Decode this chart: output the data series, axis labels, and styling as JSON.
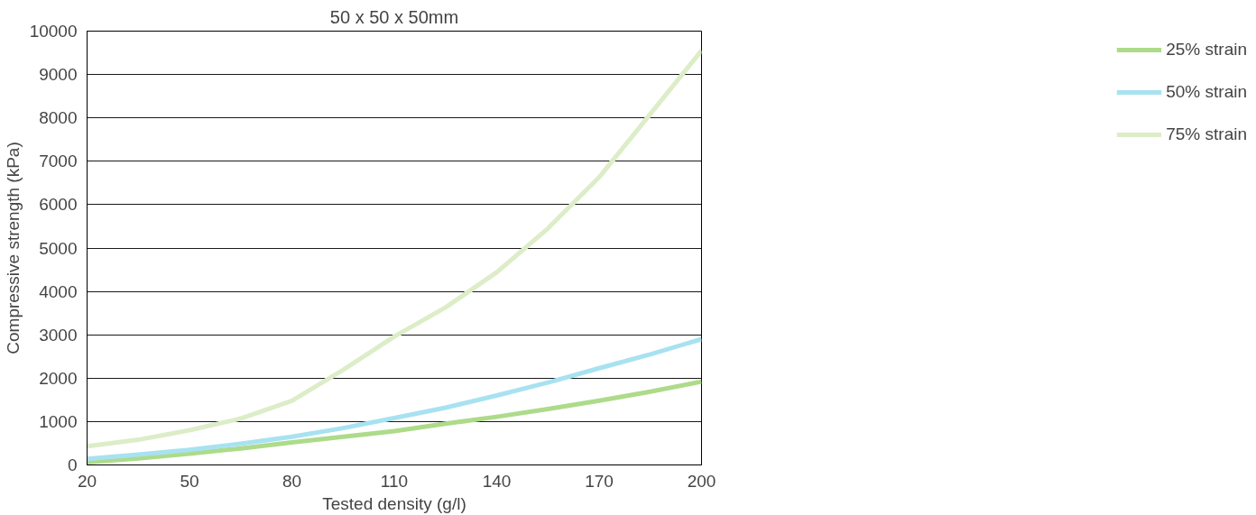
{
  "chart_data": {
    "type": "line",
    "title": "50 x 50 x 50mm",
    "xlabel": "Tested density (g/l)",
    "ylabel": "Compressive strength (kPa)",
    "x": [
      20,
      35,
      50,
      65,
      80,
      95,
      110,
      125,
      140,
      155,
      170,
      185,
      200
    ],
    "series": [
      {
        "name": "25% strain",
        "color": "#addb8a",
        "values": [
          60,
          150,
          260,
          380,
          520,
          650,
          780,
          950,
          1110,
          1290,
          1480,
          1690,
          1920
        ]
      },
      {
        "name": "50% strain",
        "color": "#a8e2f1",
        "values": [
          140,
          240,
          350,
          490,
          650,
          850,
          1080,
          1320,
          1600,
          1900,
          2230,
          2550,
          2900
        ]
      },
      {
        "name": "75% strain",
        "color": "#dcedc8",
        "values": [
          430,
          580,
          800,
          1070,
          1480,
          2190,
          2960,
          3630,
          4440,
          5450,
          6630,
          8090,
          9550
        ]
      }
    ],
    "xlim": [
      20,
      200
    ],
    "xticks": [
      20,
      50,
      80,
      110,
      140,
      170,
      200
    ],
    "ylim": [
      0,
      10000
    ],
    "yticks": [
      0,
      1000,
      2000,
      3000,
      4000,
      5000,
      6000,
      7000,
      8000,
      9000,
      10000
    ],
    "grid": "y",
    "legend": "right"
  }
}
